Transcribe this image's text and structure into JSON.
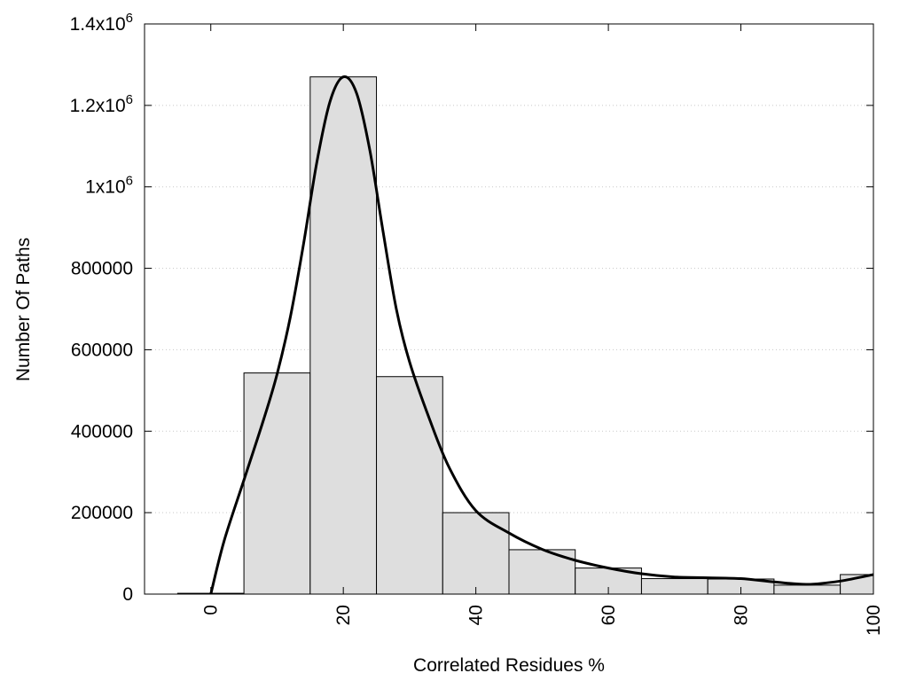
{
  "chart_data": {
    "type": "bar",
    "title": "",
    "xlabel": "Correlated Residues %",
    "ylabel": "Number Of Paths",
    "xlim": [
      -10,
      100
    ],
    "ylim": [
      0,
      1400000
    ],
    "grid": true,
    "bin_width": 10,
    "bars": {
      "centers": [
        0,
        10,
        20,
        30,
        40,
        50,
        60,
        70,
        80,
        90,
        100
      ],
      "values": [
        2000,
        543000,
        1270000,
        534000,
        200000,
        109000,
        64000,
        38000,
        37000,
        22000,
        48000
      ]
    },
    "curve": {
      "x": [
        0,
        2,
        5,
        8,
        10,
        12,
        14,
        16,
        18,
        20,
        22,
        24,
        26,
        28,
        30,
        33,
        36,
        40,
        45,
        50,
        55,
        60,
        65,
        70,
        75,
        80,
        85,
        90,
        95,
        100
      ],
      "y": [
        0,
        130000,
        280000,
        430000,
        540000,
        680000,
        860000,
        1060000,
        1210000,
        1270000,
        1230000,
        1090000,
        890000,
        700000,
        570000,
        430000,
        310000,
        205000,
        150000,
        110000,
        83000,
        64000,
        50000,
        42000,
        40000,
        38000,
        30000,
        24000,
        32000,
        48000
      ]
    },
    "x_ticks": [
      {
        "value": 0,
        "label": "0"
      },
      {
        "value": 20,
        "label": "20"
      },
      {
        "value": 40,
        "label": "40"
      },
      {
        "value": 60,
        "label": "60"
      },
      {
        "value": 80,
        "label": "80"
      },
      {
        "value": 100,
        "label": "100"
      }
    ],
    "y_ticks": [
      {
        "value": 0,
        "label": "0"
      },
      {
        "value": 200000,
        "label": "200000"
      },
      {
        "value": 400000,
        "label": "400000"
      },
      {
        "value": 600000,
        "label": "600000"
      },
      {
        "value": 800000,
        "label": "800000"
      },
      {
        "value": 1000000,
        "base": "1x10",
        "exp": "6"
      },
      {
        "value": 1200000,
        "base": "1.2x10",
        "exp": "6"
      },
      {
        "value": 1400000,
        "base": "1.4x10",
        "exp": "6"
      }
    ],
    "colors": {
      "bar_fill": "#dedede",
      "bar_stroke": "#000000",
      "curve": "#000000",
      "grid": "#c8c8c8"
    }
  }
}
